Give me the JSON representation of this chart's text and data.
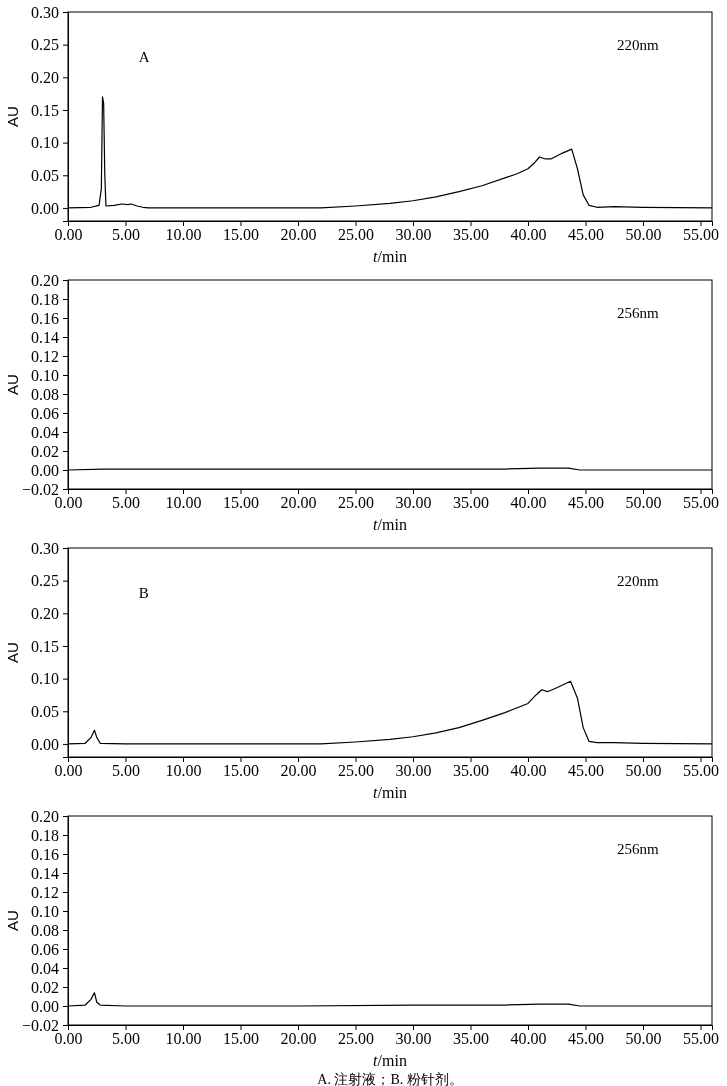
{
  "chart_data": [
    {
      "type": "line",
      "title": "A",
      "subtitle": "220nm",
      "xlabel": "t/min",
      "ylabel": "AU",
      "xlim": [
        0,
        56
      ],
      "ylim": [
        -0.02,
        0.3
      ],
      "xticks": [
        {
          "value": 0,
          "label": "0.00"
        },
        {
          "value": 5,
          "label": "5.00"
        },
        {
          "value": 10,
          "label": "10.00"
        },
        {
          "value": 15,
          "label": "15.00"
        },
        {
          "value": 20,
          "label": "20.00"
        },
        {
          "value": 25,
          "label": "25.00"
        },
        {
          "value": 30,
          "label": "30.00"
        },
        {
          "value": 35,
          "label": "35.00"
        },
        {
          "value": 40,
          "label": "40.00"
        },
        {
          "value": 45,
          "label": "45.00"
        },
        {
          "value": 50,
          "label": "50.00"
        },
        {
          "value": 55,
          "label": "55.00"
        }
      ],
      "yticks": [
        {
          "value": 0,
          "label": "0.00"
        },
        {
          "value": 0.05,
          "label": "0.05"
        },
        {
          "value": 0.1,
          "label": "0.10"
        },
        {
          "value": 0.15,
          "label": "0.15"
        },
        {
          "value": 0.2,
          "label": "0.20"
        },
        {
          "value": 0.25,
          "label": "0.25"
        },
        {
          "value": 0.3,
          "label": "0.30"
        }
      ],
      "series": [
        {
          "color": "#000000",
          "x": [
            0,
            2,
            2.7,
            2.9,
            3,
            3.1,
            3.2,
            3.3,
            4,
            4.7,
            5.2,
            5.5,
            6,
            6.5,
            7,
            10,
            15,
            20,
            22,
            25,
            28,
            30,
            32,
            34,
            36,
            38,
            39,
            40,
            40.5,
            41,
            41.5,
            42,
            43,
            43.8,
            44.3,
            44.8,
            45.3,
            46,
            47.5,
            50,
            56
          ],
          "values": [
            0,
            0.001,
            0.004,
            0.03,
            0.17,
            0.16,
            0.05,
            0.003,
            0.004,
            0.006,
            0.005,
            0.006,
            0.003,
            0.001,
            0,
            0,
            0,
            0,
            0,
            0.003,
            0.007,
            0.011,
            0.017,
            0.025,
            0.034,
            0.046,
            0.052,
            0.06,
            0.068,
            0.078,
            0.075,
            0.075,
            0.084,
            0.09,
            0.06,
            0.02,
            0.004,
            0.001,
            0.002,
            0.001,
            0
          ]
        }
      ]
    },
    {
      "type": "line",
      "subtitle": "256nm",
      "xlabel": "t/min",
      "ylabel": "AU",
      "xlim": [
        0,
        56
      ],
      "ylim": [
        -0.02,
        0.2
      ],
      "xticks": [
        {
          "value": 0,
          "label": "0.00"
        },
        {
          "value": 5,
          "label": "5.00"
        },
        {
          "value": 10,
          "label": "10.00"
        },
        {
          "value": 15,
          "label": "15.00"
        },
        {
          "value": 20,
          "label": "20.00"
        },
        {
          "value": 25,
          "label": "25.00"
        },
        {
          "value": 30,
          "label": "30.00"
        },
        {
          "value": 35,
          "label": "35.00"
        },
        {
          "value": 40,
          "label": "40.00"
        },
        {
          "value": 45,
          "label": "45.00"
        },
        {
          "value": 50,
          "label": "50.00"
        },
        {
          "value": 55,
          "label": "55.00"
        }
      ],
      "yticks": [
        {
          "value": -0.02,
          "label": "−0.02"
        },
        {
          "value": 0,
          "label": "0.00"
        },
        {
          "value": 0.02,
          "label": "0.02"
        },
        {
          "value": 0.04,
          "label": "0.04"
        },
        {
          "value": 0.06,
          "label": "0.06"
        },
        {
          "value": 0.08,
          "label": "0.08"
        },
        {
          "value": 0.1,
          "label": "0.10"
        },
        {
          "value": 0.12,
          "label": "0.12"
        },
        {
          "value": 0.14,
          "label": "0.14"
        },
        {
          "value": 0.16,
          "label": "0.16"
        },
        {
          "value": 0.18,
          "label": "0.18"
        },
        {
          "value": 0.2,
          "label": "0.20"
        }
      ],
      "series": [
        {
          "color": "#000000",
          "x": [
            0,
            3,
            7,
            20,
            30,
            38,
            41,
            43.5,
            44.5,
            56
          ],
          "values": [
            0,
            0.001,
            0.001,
            0.001,
            0.001,
            0.001,
            0.002,
            0.002,
            0,
            0
          ]
        }
      ]
    },
    {
      "type": "line",
      "title": "B",
      "subtitle": "220nm",
      "xlabel": "t/min",
      "ylabel": "AU",
      "xlim": [
        0,
        56
      ],
      "ylim": [
        -0.02,
        0.3
      ],
      "xticks": [
        {
          "value": 0,
          "label": "0.00"
        },
        {
          "value": 5,
          "label": "5.00"
        },
        {
          "value": 10,
          "label": "10.00"
        },
        {
          "value": 15,
          "label": "15.00"
        },
        {
          "value": 20,
          "label": "20.00"
        },
        {
          "value": 25,
          "label": "25.00"
        },
        {
          "value": 30,
          "label": "30.00"
        },
        {
          "value": 35,
          "label": "35.00"
        },
        {
          "value": 40,
          "label": "40.00"
        },
        {
          "value": 45,
          "label": "45.00"
        },
        {
          "value": 50,
          "label": "50.00"
        },
        {
          "value": 55,
          "label": "55.00"
        }
      ],
      "yticks": [
        {
          "value": 0,
          "label": "0.00"
        },
        {
          "value": 0.05,
          "label": "0.05"
        },
        {
          "value": 0.1,
          "label": "0.10"
        },
        {
          "value": 0.15,
          "label": "0.15"
        },
        {
          "value": 0.2,
          "label": "0.20"
        },
        {
          "value": 0.25,
          "label": "0.25"
        },
        {
          "value": 0.3,
          "label": "0.30"
        }
      ],
      "series": [
        {
          "color": "#000000",
          "x": [
            0,
            1.5,
            2,
            2.3,
            2.5,
            2.8,
            5,
            22,
            25,
            28,
            30,
            32,
            34,
            36,
            38,
            40,
            40.7,
            41.2,
            41.7,
            42.5,
            43.7,
            44.3,
            44.8,
            45.3,
            46,
            47.5,
            50,
            56
          ],
          "values": [
            0,
            0.001,
            0.01,
            0.021,
            0.01,
            0.001,
            0,
            0,
            0.003,
            0.007,
            0.011,
            0.017,
            0.025,
            0.036,
            0.048,
            0.062,
            0.075,
            0.083,
            0.08,
            0.086,
            0.096,
            0.07,
            0.025,
            0.004,
            0.002,
            0.002,
            0.001,
            0
          ]
        }
      ]
    },
    {
      "type": "line",
      "subtitle": "256nm",
      "xlabel": "t/min",
      "ylabel": "AU",
      "xlim": [
        0,
        56
      ],
      "ylim": [
        -0.02,
        0.2
      ],
      "xticks": [
        {
          "value": 0,
          "label": "0.00"
        },
        {
          "value": 5,
          "label": "5.00"
        },
        {
          "value": 10,
          "label": "10.00"
        },
        {
          "value": 15,
          "label": "15.00"
        },
        {
          "value": 20,
          "label": "20.00"
        },
        {
          "value": 25,
          "label": "25.00"
        },
        {
          "value": 30,
          "label": "30.00"
        },
        {
          "value": 35,
          "label": "35.00"
        },
        {
          "value": 40,
          "label": "40.00"
        },
        {
          "value": 45,
          "label": "45.00"
        },
        {
          "value": 50,
          "label": "50.00"
        },
        {
          "value": 55,
          "label": "55.00"
        }
      ],
      "yticks": [
        {
          "value": -0.02,
          "label": "−0.02"
        },
        {
          "value": 0,
          "label": "0.00"
        },
        {
          "value": 0.02,
          "label": "0.02"
        },
        {
          "value": 0.04,
          "label": "0.04"
        },
        {
          "value": 0.06,
          "label": "0.06"
        },
        {
          "value": 0.08,
          "label": "0.08"
        },
        {
          "value": 0.1,
          "label": "0.10"
        },
        {
          "value": 0.12,
          "label": "0.12"
        },
        {
          "value": 0.14,
          "label": "0.14"
        },
        {
          "value": 0.16,
          "label": "0.16"
        },
        {
          "value": 0.18,
          "label": "0.18"
        },
        {
          "value": 0.2,
          "label": "0.20"
        }
      ],
      "annotations": [
        "A. 注射液；B. 粉针剂。"
      ],
      "series": [
        {
          "color": "#000000",
          "x": [
            0,
            1.5,
            2,
            2.3,
            2.5,
            2.8,
            5,
            20,
            30,
            38,
            41,
            43.5,
            44.5,
            56
          ],
          "values": [
            0,
            0.001,
            0.007,
            0.014,
            0.004,
            0.001,
            0,
            0,
            0.001,
            0.001,
            0.002,
            0.002,
            0,
            0
          ]
        }
      ]
    }
  ]
}
